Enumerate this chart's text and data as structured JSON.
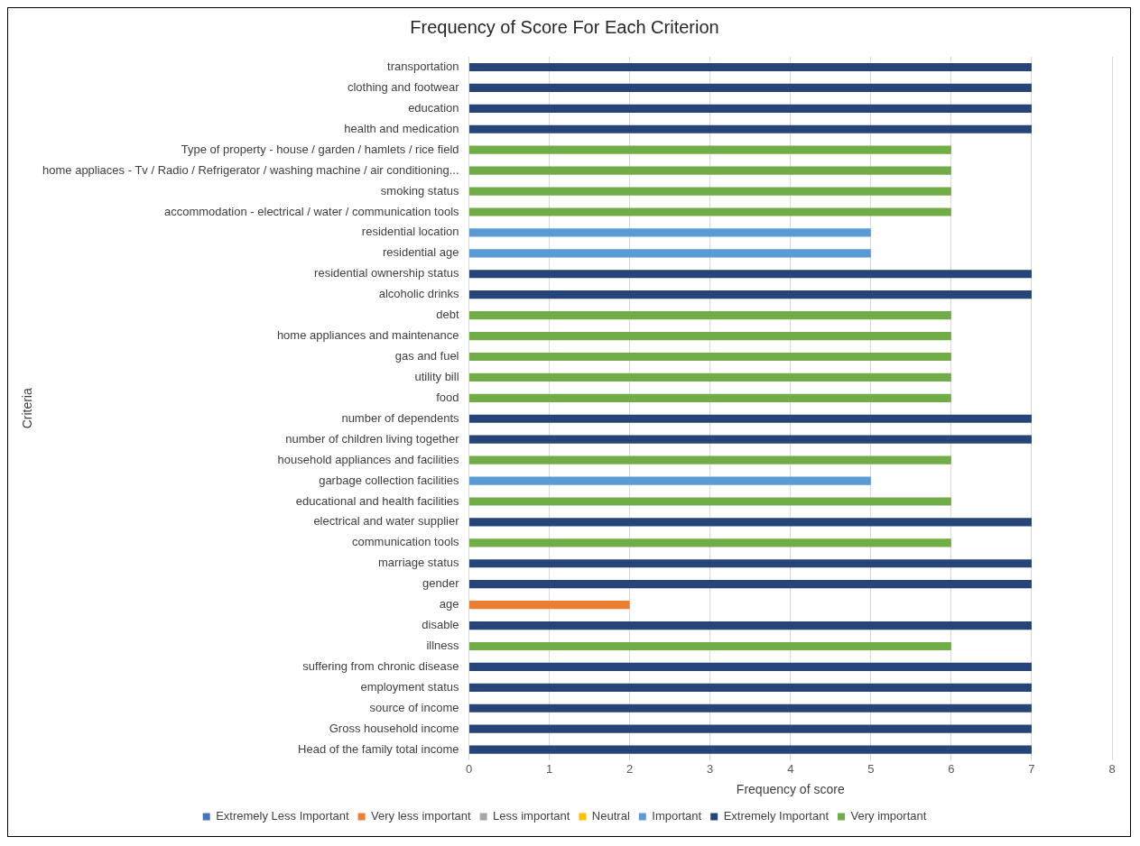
{
  "chart_data": {
    "type": "bar",
    "orientation": "horizontal",
    "stacked": true,
    "title": "Frequency of Score For Each Criterion",
    "xlabel": "Frequency of score",
    "ylabel": "Criteria",
    "categories": [
      "transportation",
      "clothing and footwear",
      "education",
      "health and medication",
      "Type of property - house / garden / hamlets / rice field",
      "home appliaces - Tv / Radio / Refrigerator / washing machine / air conditioning...",
      "smoking status",
      "accommodation - electrical / water / communication tools",
      "residential location",
      "residential age",
      "residential ownership status",
      "alcoholic drinks",
      "debt",
      "home appliances and maintenance",
      "gas and fuel",
      "utility bill",
      "food",
      "number of dependents",
      "number of children living together",
      "household appliances and facilities",
      "garbage collection facilities",
      "educational and health facilities",
      "electrical and water supplier",
      "communication tools",
      "marriage status",
      "gender",
      "age",
      "disable",
      "illness",
      "suffering from chronic disease",
      "employment status",
      "source of income",
      "Gross household income",
      "Head of the family total income"
    ],
    "series": [
      {
        "name": "Extremely Less Important",
        "color": "#4472c4",
        "values": [
          null,
          null,
          null,
          null,
          null,
          null,
          null,
          null,
          null,
          null,
          null,
          null,
          null,
          null,
          null,
          null,
          null,
          null,
          null,
          null,
          null,
          null,
          null,
          null,
          null,
          null,
          null,
          null,
          null,
          null,
          null,
          null,
          null,
          null
        ]
      },
      {
        "name": "Very less important",
        "color": "#ed7d31",
        "values": [
          null,
          null,
          null,
          null,
          null,
          null,
          null,
          null,
          null,
          null,
          null,
          null,
          null,
          null,
          null,
          null,
          null,
          null,
          null,
          null,
          null,
          null,
          null,
          null,
          null,
          null,
          2,
          null,
          null,
          null,
          null,
          null,
          null,
          null
        ]
      },
      {
        "name": "Less important",
        "color": "#a5a5a5",
        "values": [
          null,
          null,
          null,
          null,
          null,
          null,
          null,
          null,
          null,
          null,
          null,
          null,
          null,
          null,
          null,
          null,
          null,
          null,
          null,
          null,
          null,
          null,
          null,
          null,
          null,
          null,
          null,
          null,
          null,
          null,
          null,
          null,
          null,
          null
        ]
      },
      {
        "name": "Neutral",
        "color": "#ffc000",
        "values": [
          null,
          null,
          null,
          null,
          null,
          null,
          null,
          null,
          null,
          null,
          null,
          null,
          null,
          null,
          null,
          null,
          null,
          null,
          null,
          null,
          null,
          null,
          null,
          null,
          null,
          null,
          null,
          null,
          null,
          null,
          null,
          null,
          null,
          null
        ]
      },
      {
        "name": "Important",
        "color": "#5b9bd5",
        "values": [
          null,
          null,
          null,
          null,
          null,
          null,
          null,
          null,
          5,
          5,
          null,
          null,
          null,
          null,
          null,
          null,
          null,
          null,
          null,
          null,
          5,
          null,
          null,
          null,
          null,
          null,
          null,
          null,
          null,
          null,
          null,
          null,
          null,
          null
        ]
      },
      {
        "name": "Extremely Important",
        "color": "#264478",
        "values": [
          7,
          7,
          7,
          7,
          null,
          null,
          null,
          null,
          null,
          null,
          7,
          7,
          null,
          null,
          null,
          null,
          null,
          7,
          7,
          null,
          null,
          null,
          7,
          null,
          7,
          7,
          null,
          7,
          null,
          7,
          7,
          7,
          7,
          7
        ]
      },
      {
        "name": "Very important",
        "color": "#70ad47",
        "values": [
          null,
          null,
          null,
          null,
          6,
          6,
          6,
          6,
          null,
          null,
          null,
          null,
          6,
          6,
          6,
          6,
          6,
          null,
          null,
          6,
          null,
          6,
          null,
          6,
          null,
          null,
          null,
          null,
          6,
          null,
          null,
          null,
          null,
          null
        ]
      }
    ],
    "xlim": [
      0,
      8
    ],
    "xticks": [
      0,
      1,
      2,
      3,
      4,
      5,
      6,
      7,
      8
    ],
    "grid": "x",
    "legend": "bottom"
  }
}
